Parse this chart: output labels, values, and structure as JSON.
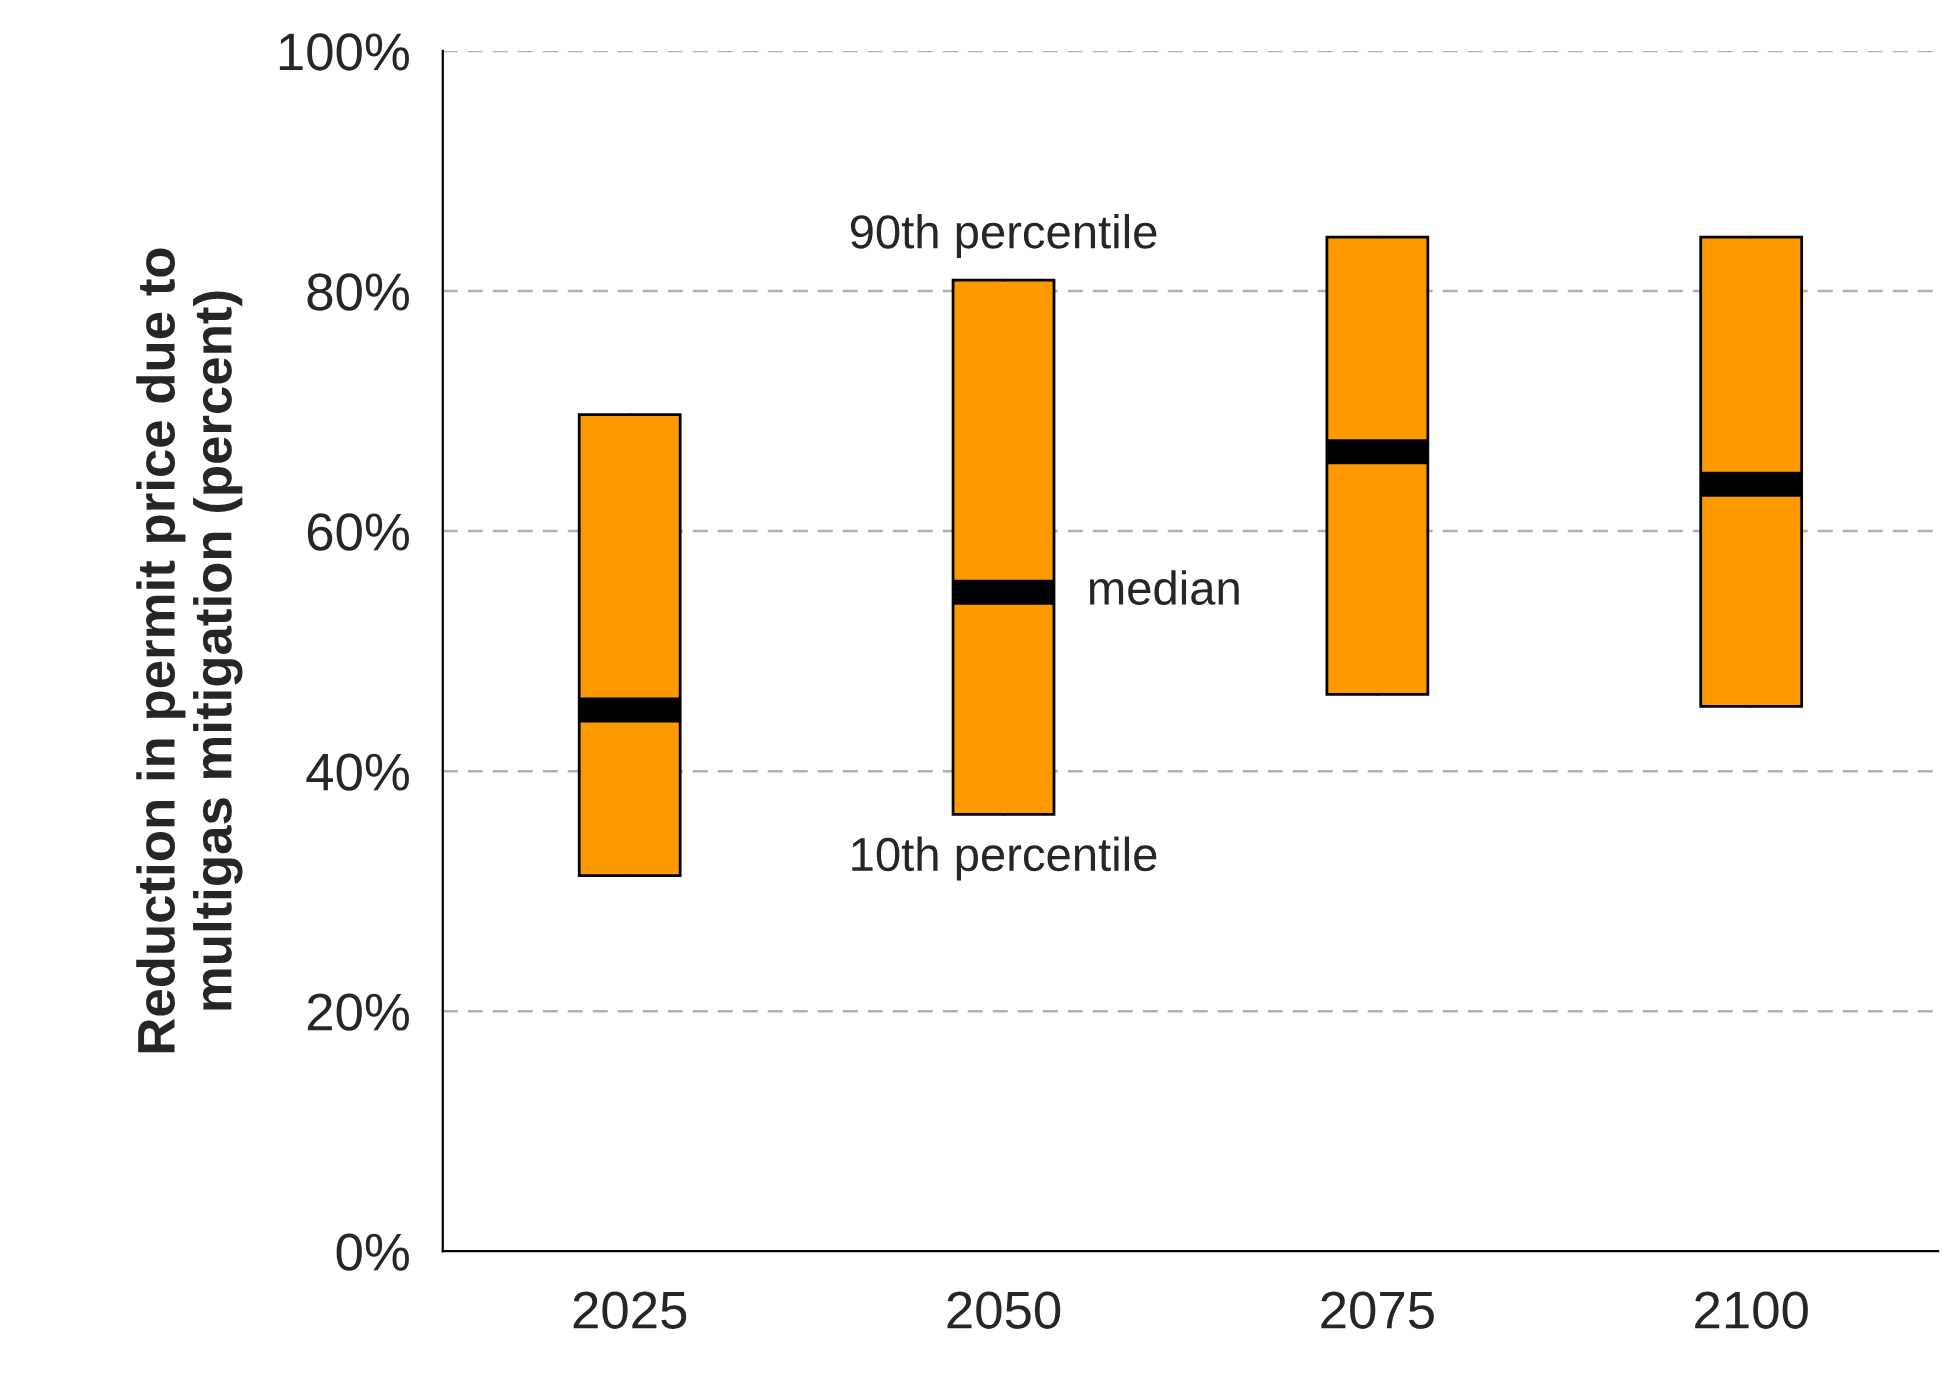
{
  "chart_data": {
    "type": "box",
    "ylabel": "Reduction in permit price due to\nmultigas mitigation (percent)",
    "categories": [
      "2025",
      "2050",
      "2075",
      "2100"
    ],
    "color": "#ff9900",
    "boxes": [
      {
        "low": 31.3,
        "q1": 31.3,
        "median": 45.1,
        "q3": 69.7,
        "high": 69.7
      },
      {
        "low": 36.4,
        "q1": 36.4,
        "median": 54.9,
        "q3": 80.9,
        "high": 80.9
      },
      {
        "low": 46.4,
        "q1": 46.4,
        "median": 66.6,
        "q3": 84.5,
        "high": 84.5
      },
      {
        "low": 45.4,
        "q1": 45.4,
        "median": 63.9,
        "q3": 84.5,
        "high": 84.5
      }
    ],
    "ylim": [
      0,
      100
    ],
    "yticks": [
      {
        "value": 0,
        "label": "0%"
      },
      {
        "value": 20,
        "label": "20%"
      },
      {
        "value": 40,
        "label": "40%"
      },
      {
        "value": 60,
        "label": "60%"
      },
      {
        "value": 80,
        "label": "80%"
      },
      {
        "value": 100,
        "label": "100%"
      }
    ],
    "grid": "y",
    "annotations": [
      {
        "text": "90th percentile",
        "x": "2050",
        "y": 80.9
      },
      {
        "text": "median",
        "x": "2050",
        "y": 54.9
      },
      {
        "text": "10th percentile",
        "x": "2050",
        "y": 36.4
      }
    ]
  }
}
